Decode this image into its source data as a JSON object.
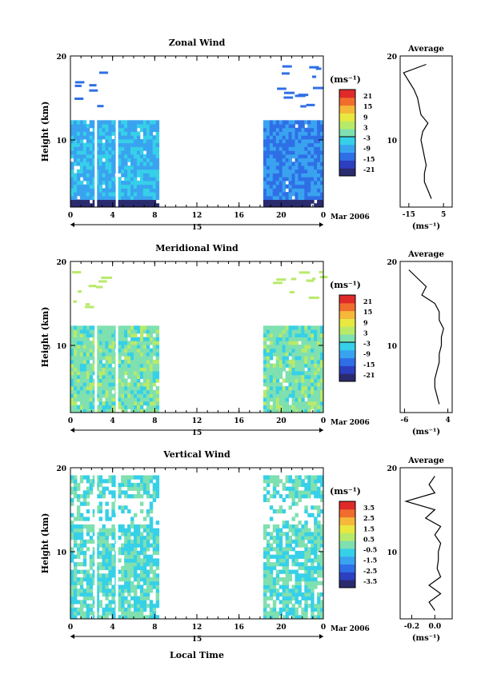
{
  "xlabel": "Local Time",
  "date_label": "Mar 2006",
  "day_label": "15",
  "chart_data": [
    {
      "type": "heatmap",
      "title": "Zonal Wind",
      "ylabel": "Height (km)",
      "ylim": [
        2,
        20
      ],
      "xlim": [
        0,
        24
      ],
      "xticks": [
        "0",
        "4",
        "8",
        "12",
        "16",
        "20",
        "0"
      ],
      "yticks": [
        "10",
        "20"
      ],
      "colorbar": {
        "unit": "(ms⁻¹)",
        "ticks": [
          "21",
          "15",
          "9",
          "3",
          "-3",
          "-9",
          "-15",
          "-21"
        ],
        "range": [
          -24,
          24
        ]
      },
      "data_gaps_hours": [
        [
          8.3,
          18.3
        ]
      ],
      "average_profile": {
        "title": "Average",
        "xlabel": "(ms⁻¹)",
        "xticks": [
          "-15",
          "5"
        ],
        "xlim": [
          -20,
          10
        ],
        "yticks": [
          "10",
          "20"
        ],
        "heights": [
          3,
          4,
          5,
          6,
          7,
          8,
          9,
          10,
          11,
          12,
          13,
          14,
          15,
          16,
          17,
          18,
          19
        ],
        "values": [
          -2,
          -4,
          -6,
          -6,
          -5,
          -6,
          -7,
          -8,
          -7,
          -4,
          -8,
          -9,
          -10,
          -12,
          -15,
          -18,
          -5
        ]
      }
    },
    {
      "type": "heatmap",
      "title": "Meridional Wind",
      "ylabel": "Height (km)",
      "ylim": [
        2,
        20
      ],
      "xlim": [
        0,
        24
      ],
      "xticks": [
        "0",
        "4",
        "8",
        "12",
        "16",
        "20",
        "0"
      ],
      "yticks": [
        "10",
        "20"
      ],
      "colorbar": {
        "unit": "(ms⁻¹)",
        "ticks": [
          "21",
          "15",
          "9",
          "3",
          "-3",
          "-9",
          "-15",
          "-21"
        ],
        "range": [
          -24,
          24
        ]
      },
      "data_gaps_hours": [
        [
          8.3,
          18.3
        ]
      ],
      "average_profile": {
        "title": "Average",
        "xlabel": "(ms⁻¹)",
        "xticks": [
          "-6",
          "4"
        ],
        "xlim": [
          -7,
          5
        ],
        "yticks": [
          "10",
          "20"
        ],
        "heights": [
          3,
          4,
          5,
          6,
          7,
          8,
          9,
          10,
          11,
          12,
          13,
          14,
          15,
          16,
          17,
          18,
          19
        ],
        "values": [
          2,
          1.5,
          1,
          1,
          1.5,
          2,
          2,
          2.5,
          2.5,
          3,
          2,
          2,
          1,
          -2,
          -1,
          -3,
          -5
        ]
      }
    },
    {
      "type": "heatmap",
      "title": "Vertical Wind",
      "ylabel": "Height (km)",
      "ylim": [
        2,
        20
      ],
      "xlim": [
        0,
        24
      ],
      "xticks": [
        "0",
        "4",
        "8",
        "12",
        "16",
        "20",
        "0"
      ],
      "yticks": [
        "10",
        "20"
      ],
      "colorbar": {
        "unit": "(ms⁻¹)",
        "ticks": [
          "3.5",
          "2.5",
          "1.5",
          "0.5",
          "-0.5",
          "-1.5",
          "-2.5",
          "-3.5"
        ],
        "range": [
          -4,
          4
        ]
      },
      "data_gaps_hours": [
        [
          8.3,
          18.3
        ]
      ],
      "average_profile": {
        "title": "Average",
        "xlabel": "(ms⁻¹)",
        "xticks": [
          "-0.2",
          "0.0"
        ],
        "xlim": [
          -0.3,
          0.15
        ],
        "yticks": [
          "10",
          "20"
        ],
        "heights": [
          3,
          4,
          5,
          6,
          7,
          8,
          9,
          10,
          11,
          12,
          13,
          14,
          15,
          16,
          17,
          18,
          19
        ],
        "values": [
          0,
          -0.05,
          0.05,
          -0.05,
          0.05,
          0.02,
          0.03,
          0.03,
          0.05,
          0.0,
          0.05,
          -0.08,
          0.0,
          -0.25,
          0.0,
          -0.05,
          0.0
        ]
      }
    }
  ]
}
